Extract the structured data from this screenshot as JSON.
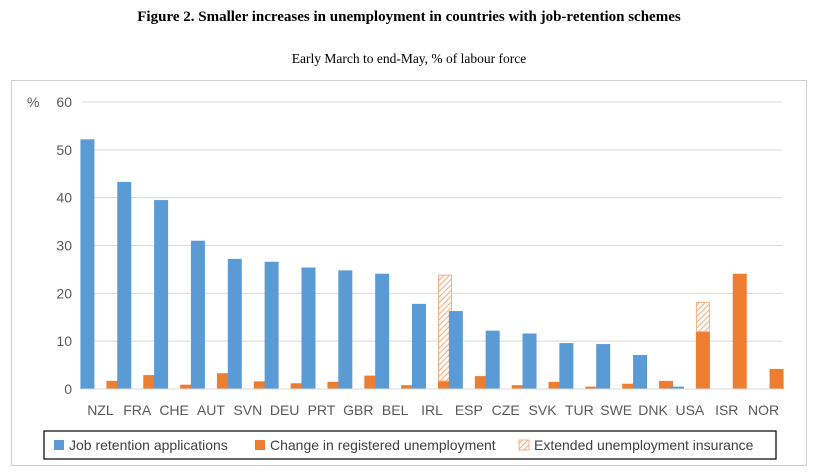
{
  "title": "Figure 2. Smaller increases in unemployment in countries with job-retention schemes",
  "subtitle": "Early March to end-May, % of labour force",
  "colors": {
    "job_retention": "#5B9BD5",
    "unemployment": "#ED7D31",
    "extended": "#F4B183"
  },
  "chart_data": {
    "type": "bar",
    "ylabel": "%",
    "ylim": [
      0,
      60
    ],
    "yticks": [
      0,
      10,
      20,
      30,
      40,
      50,
      60
    ],
    "grid": true,
    "legend_position": "bottom",
    "categories": [
      "NZL",
      "FRA",
      "CHE",
      "AUT",
      "SVN",
      "DEU",
      "PRT",
      "GBR",
      "BEL",
      "IRL",
      "ESP",
      "CZE",
      "SVK",
      "TUR",
      "SWE",
      "DNK",
      "USA",
      "ISR",
      "NOR"
    ],
    "series": [
      {
        "name": "Job retention applications",
        "values": [
          52.2,
          43.3,
          39.5,
          31.0,
          27.2,
          26.6,
          25.4,
          24.8,
          24.1,
          17.8,
          16.3,
          12.2,
          11.6,
          9.6,
          9.4,
          7.1,
          0.5,
          0,
          0
        ]
      },
      {
        "name": "Change in registered unemployment",
        "values": [
          1.7,
          2.9,
          0.9,
          3.3,
          1.6,
          1.2,
          1.5,
          2.8,
          0.8,
          1.6,
          2.7,
          0.8,
          1.5,
          0.5,
          1.1,
          1.7,
          11.9,
          24.1,
          4.2
        ]
      },
      {
        "name": "Extended unemployment insurance",
        "values": [
          0,
          0,
          0,
          0,
          0,
          0,
          0,
          0,
          0,
          22.3,
          0,
          0,
          0,
          0,
          0,
          0,
          6.3,
          0,
          0
        ]
      }
    ]
  }
}
